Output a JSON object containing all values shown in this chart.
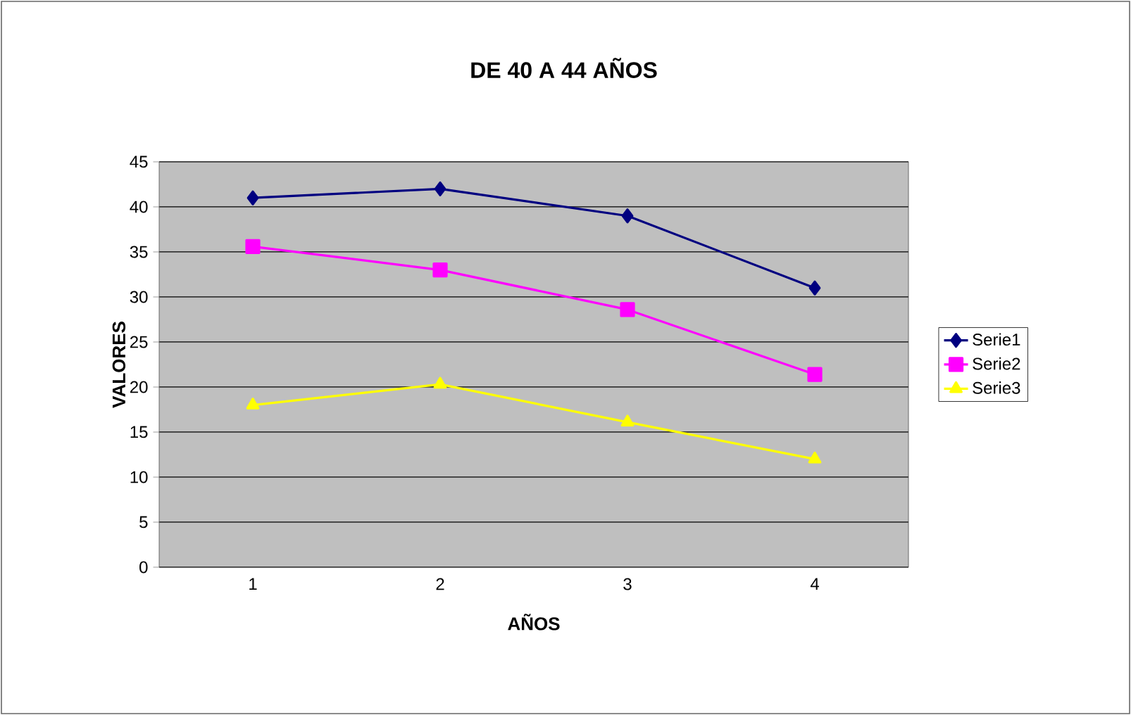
{
  "chart_data": {
    "type": "line",
    "title": "DE 40 A 44 AÑOS",
    "xlabel": "AÑOS",
    "ylabel": "VALORES",
    "categories": [
      "1",
      "2",
      "3",
      "4"
    ],
    "series": [
      {
        "name": "Serie1",
        "color": "#000080",
        "marker": "diamond",
        "values": [
          41,
          42,
          39,
          31
        ]
      },
      {
        "name": "Serie2",
        "color": "#ff00ff",
        "marker": "square",
        "values": [
          35.6,
          33,
          28.6,
          21.4
        ]
      },
      {
        "name": "Serie3",
        "color": "#ffff00",
        "marker": "triangle",
        "values": [
          18,
          20.3,
          16.1,
          12
        ]
      }
    ],
    "ylim": [
      0,
      45
    ],
    "yticks": [
      0,
      5,
      10,
      15,
      20,
      25,
      30,
      35,
      40,
      45
    ],
    "grid": "y",
    "legend": "right",
    "line_style": "solid"
  }
}
